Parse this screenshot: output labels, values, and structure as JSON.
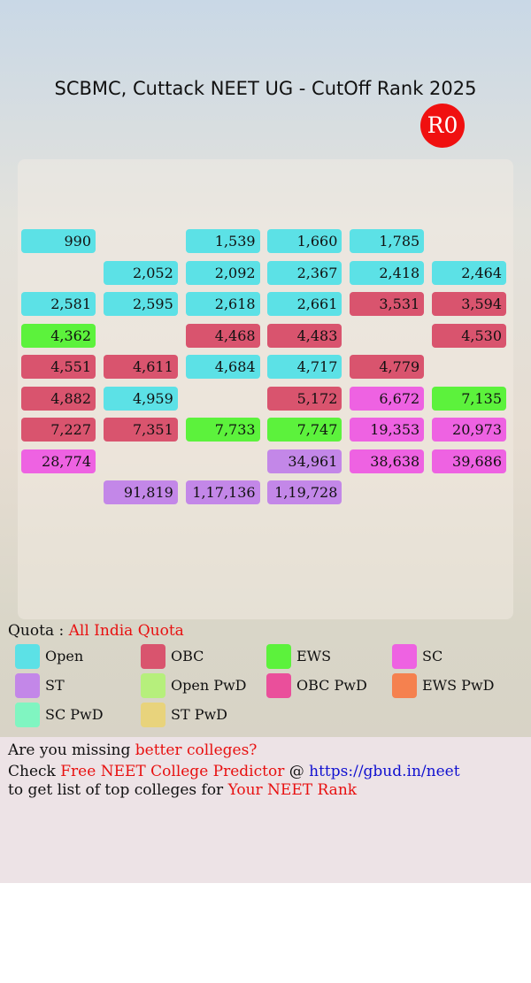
{
  "header": {
    "title": "SCBMC, Cuttack NEET UG - CutOff Rank 2025",
    "round": "R0"
  },
  "grid": {
    "rows": [
      [
        {
          "rank": "990",
          "quota": "Open"
        },
        null,
        {
          "rank": "1,539",
          "quota": "Open"
        },
        {
          "rank": "1,660",
          "quota": "Open"
        },
        {
          "rank": "1,785",
          "quota": "Open"
        },
        null
      ],
      [
        null,
        {
          "rank": "2,052",
          "quota": "Open"
        },
        {
          "rank": "2,092",
          "quota": "Open"
        },
        {
          "rank": "2,367",
          "quota": "Open"
        },
        {
          "rank": "2,418",
          "quota": "Open"
        },
        {
          "rank": "2,464",
          "quota": "Open"
        }
      ],
      [
        {
          "rank": "2,581",
          "quota": "Open"
        },
        {
          "rank": "2,595",
          "quota": "Open"
        },
        {
          "rank": "2,618",
          "quota": "Open"
        },
        {
          "rank": "2,661",
          "quota": "Open"
        },
        {
          "rank": "3,531",
          "quota": "OBC"
        },
        {
          "rank": "3,594",
          "quota": "OBC"
        }
      ],
      [
        {
          "rank": "4,362",
          "quota": "EWS"
        },
        null,
        {
          "rank": "4,468",
          "quota": "OBC"
        },
        {
          "rank": "4,483",
          "quota": "OBC"
        },
        null,
        {
          "rank": "4,530",
          "quota": "OBC"
        }
      ],
      [
        {
          "rank": "4,551",
          "quota": "OBC"
        },
        {
          "rank": "4,611",
          "quota": "OBC"
        },
        {
          "rank": "4,684",
          "quota": "Open"
        },
        {
          "rank": "4,717",
          "quota": "Open"
        },
        {
          "rank": "4,779",
          "quota": "OBC"
        },
        null
      ],
      [
        {
          "rank": "4,882",
          "quota": "OBC"
        },
        {
          "rank": "4,959",
          "quota": "Open"
        },
        null,
        {
          "rank": "5,172",
          "quota": "OBC"
        },
        {
          "rank": "6,672",
          "quota": "SC"
        },
        {
          "rank": "7,135",
          "quota": "EWS"
        }
      ],
      [
        {
          "rank": "7,227",
          "quota": "OBC"
        },
        {
          "rank": "7,351",
          "quota": "OBC"
        },
        {
          "rank": "7,733",
          "quota": "EWS"
        },
        {
          "rank": "7,747",
          "quota": "EWS"
        },
        {
          "rank": "19,353",
          "quota": "SC"
        },
        {
          "rank": "20,973",
          "quota": "SC"
        }
      ],
      [
        {
          "rank": "28,774",
          "quota": "SC"
        },
        null,
        null,
        {
          "rank": "34,961",
          "quota": "ST"
        },
        {
          "rank": "38,638",
          "quota": "SC"
        },
        {
          "rank": "39,686",
          "quota": "SC"
        }
      ],
      [
        null,
        {
          "rank": "91,819",
          "quota": "ST"
        },
        {
          "rank": "1,17,136",
          "quota": "ST"
        },
        {
          "rank": "1,19,728",
          "quota": "ST"
        },
        null,
        null
      ]
    ]
  },
  "quota": {
    "label": "Quota :",
    "value": "All India Quota"
  },
  "legend": [
    {
      "name": "Open",
      "color": "#5ce1e6"
    },
    {
      "name": "OBC",
      "color": "#d9546e"
    },
    {
      "name": "EWS",
      "color": "#5cf23c"
    },
    {
      "name": "SC",
      "color": "#ee62e2"
    },
    {
      "name": "ST",
      "color": "#c387e8"
    },
    {
      "name": "Open PwD",
      "color": "#b6ef7c"
    },
    {
      "name": "OBC PwD",
      "color": "#ea4f9b"
    },
    {
      "name": "EWS PwD",
      "color": "#f5814f"
    },
    {
      "name": "SC PwD",
      "color": "#80f5c1"
    },
    {
      "name": "ST PwD",
      "color": "#e8d37c"
    }
  ],
  "footer": {
    "line1": [
      "Are you missing ",
      "better colleges?"
    ],
    "line2": [
      "Check ",
      "Free NEET College Predictor",
      " @ ",
      "https://gbud.in/neet"
    ],
    "line3": [
      "to get list of top colleges for ",
      "Your NEET Rank"
    ]
  }
}
